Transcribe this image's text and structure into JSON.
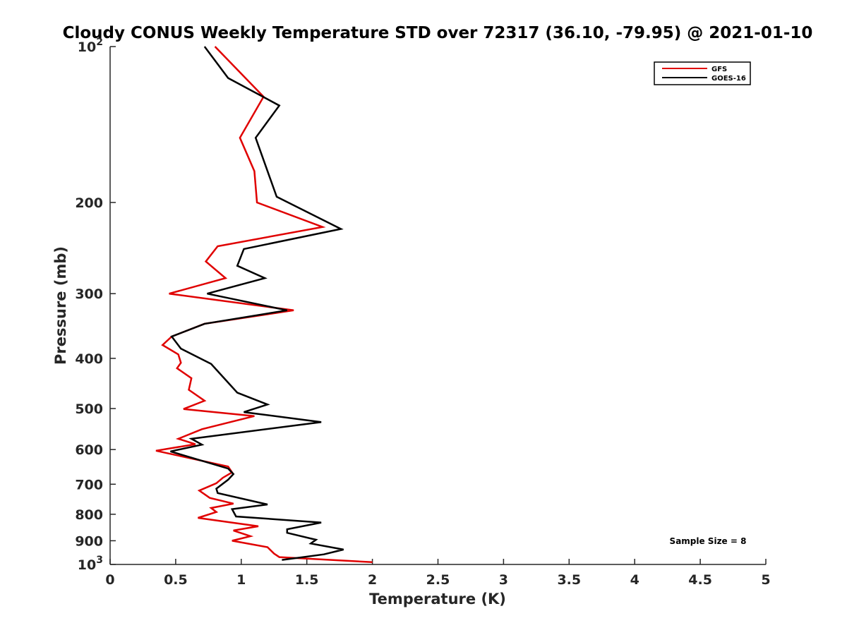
{
  "chart_data": {
    "type": "line",
    "title": "Cloudy CONUS Weekly Temperature STD over 72317 (36.10, -79.95) @ 2021-01-10",
    "xlabel": "Temperature (K)",
    "ylabel": "Pressure (mb)",
    "xlim": [
      0,
      5
    ],
    "ylim": [
      100,
      1000
    ],
    "y_scale": "log",
    "y_reversed": true,
    "x_ticks": [
      0,
      0.5,
      1,
      1.5,
      2,
      2.5,
      3,
      3.5,
      4,
      4.5,
      5
    ],
    "x_tick_labels": [
      "0",
      "0.5",
      "1",
      "1.5",
      "2",
      "2.5",
      "3",
      "3.5",
      "4",
      "4.5",
      "5"
    ],
    "y_ticks": [
      100,
      200,
      300,
      400,
      500,
      600,
      700,
      800,
      900,
      1000
    ],
    "y_tick_labels": [
      {
        "base": "10",
        "exp": "2"
      },
      {
        "base": "200"
      },
      {
        "base": "300"
      },
      {
        "base": "400"
      },
      {
        "base": "500"
      },
      {
        "base": "600"
      },
      {
        "base": "700"
      },
      {
        "base": "800"
      },
      {
        "base": "900"
      },
      {
        "base": "10",
        "exp": "3"
      }
    ],
    "grid": false,
    "legend_position": "top-right",
    "series": [
      {
        "name": "GFS",
        "color": "#e00000",
        "points": [
          [
            0.8,
            100
          ],
          [
            1.17,
            125
          ],
          [
            0.99,
            150
          ],
          [
            1.1,
            174
          ],
          [
            1.12,
            200
          ],
          [
            1.62,
            223
          ],
          [
            0.82,
            243
          ],
          [
            0.73,
            260
          ],
          [
            0.88,
            280
          ],
          [
            0.45,
            300
          ],
          [
            1.4,
            323
          ],
          [
            0.72,
            343
          ],
          [
            0.47,
            363
          ],
          [
            0.4,
            377
          ],
          [
            0.52,
            393
          ],
          [
            0.54,
            408
          ],
          [
            0.51,
            418
          ],
          [
            0.62,
            437
          ],
          [
            0.6,
            460
          ],
          [
            0.72,
            483
          ],
          [
            0.56,
            501
          ],
          [
            1.1,
            517
          ],
          [
            0.7,
            548
          ],
          [
            0.52,
            572
          ],
          [
            0.65,
            586
          ],
          [
            0.35,
            603
          ],
          [
            0.9,
            647
          ],
          [
            0.93,
            664
          ],
          [
            0.86,
            680
          ],
          [
            0.81,
            697
          ],
          [
            0.68,
            720
          ],
          [
            0.76,
            744
          ],
          [
            0.94,
            763
          ],
          [
            0.77,
            778
          ],
          [
            0.81,
            792
          ],
          [
            0.67,
            813
          ],
          [
            1.13,
            844
          ],
          [
            0.94,
            860
          ],
          [
            1.07,
            882
          ],
          [
            0.93,
            900
          ],
          [
            1.2,
            926
          ],
          [
            1.25,
            953
          ],
          [
            1.29,
            968
          ],
          [
            2.0,
            990
          ]
        ]
      },
      {
        "name": "GOES-16",
        "color": "#000000",
        "points": [
          [
            0.72,
            100
          ],
          [
            0.9,
            115
          ],
          [
            1.29,
            130
          ],
          [
            1.11,
            150
          ],
          [
            1.27,
            195
          ],
          [
            1.76,
            225
          ],
          [
            1.02,
            246
          ],
          [
            0.97,
            265
          ],
          [
            1.18,
            280
          ],
          [
            0.74,
            300
          ],
          [
            1.35,
            323
          ],
          [
            0.72,
            343
          ],
          [
            0.47,
            363
          ],
          [
            0.54,
            383
          ],
          [
            0.77,
            410
          ],
          [
            0.87,
            437
          ],
          [
            0.97,
            466
          ],
          [
            1.2,
            491
          ],
          [
            1.02,
            508
          ],
          [
            1.61,
            531
          ],
          [
            0.62,
            572
          ],
          [
            0.7,
            587
          ],
          [
            0.46,
            605
          ],
          [
            0.9,
            653
          ],
          [
            0.94,
            669
          ],
          [
            0.9,
            686
          ],
          [
            0.81,
            714
          ],
          [
            0.82,
            728
          ],
          [
            1.2,
            766
          ],
          [
            0.93,
            782
          ],
          [
            0.96,
            808
          ],
          [
            1.61,
            830
          ],
          [
            1.35,
            855
          ],
          [
            1.35,
            869
          ],
          [
            1.57,
            896
          ],
          [
            1.53,
            911
          ],
          [
            1.78,
            936
          ],
          [
            1.63,
            956
          ],
          [
            1.31,
            980
          ]
        ]
      }
    ],
    "annotations": [
      {
        "text": "Sample Size = 8"
      }
    ]
  }
}
